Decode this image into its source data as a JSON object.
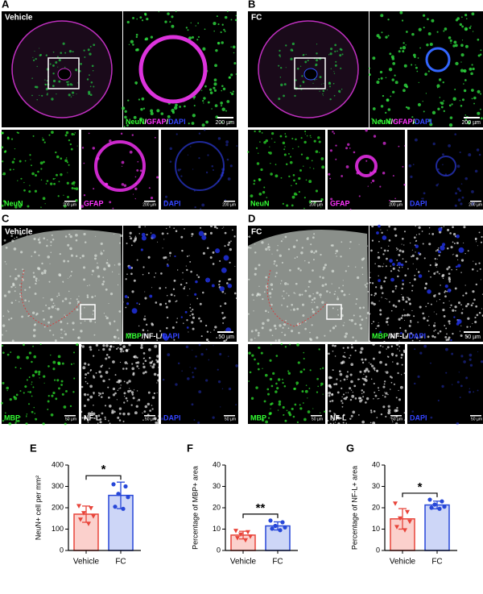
{
  "panels": [
    {
      "letter": "A",
      "condition": "Vehicle",
      "merge": [
        {
          "text": "NeuN",
          "color": "#33ff33"
        },
        {
          "text": "/",
          "color": "#ffffff"
        },
        {
          "text": "GFAP",
          "color": "#ff33ff"
        },
        {
          "text": "/",
          "color": "#ffffff"
        },
        {
          "text": "DAPI",
          "color": "#3344ff"
        }
      ],
      "merge_scale": "200 µm",
      "channels": [
        {
          "name": "NeuN",
          "color": "#33ff33",
          "scale": "200 µm"
        },
        {
          "name": "GFAP",
          "color": "#ff33ff",
          "scale": "200 µm"
        },
        {
          "name": "DAPI",
          "color": "#3344ff",
          "scale": "200 µm"
        }
      ]
    },
    {
      "letter": "B",
      "condition": "FC",
      "merge": [
        {
          "text": "NeuN",
          "color": "#33ff33"
        },
        {
          "text": "/",
          "color": "#ffffff"
        },
        {
          "text": "GFAP",
          "color": "#ff33ff"
        },
        {
          "text": "/",
          "color": "#ffffff"
        },
        {
          "text": "DAPI",
          "color": "#3344ff"
        }
      ],
      "merge_scale": "200 µm",
      "channels": [
        {
          "name": "NeuN",
          "color": "#33ff33",
          "scale": "200 µm"
        },
        {
          "name": "GFAP",
          "color": "#ff33ff",
          "scale": "200 µm"
        },
        {
          "name": "DAPI",
          "color": "#3344ff",
          "scale": "200 µm"
        }
      ]
    },
    {
      "letter": "C",
      "condition": "Vehicle",
      "merge": [
        {
          "text": "MBP",
          "color": "#33ff33"
        },
        {
          "text": "/",
          "color": "#ffffff"
        },
        {
          "text": "NF-L",
          "color": "#ffffff"
        },
        {
          "text": "/",
          "color": "#ffffff"
        },
        {
          "text": "DAPI",
          "color": "#3344ff"
        }
      ],
      "merge_scale": "50 µm",
      "channels": [
        {
          "name": "MBP",
          "color": "#33ff33",
          "scale": "50 µm"
        },
        {
          "name": "NF-L",
          "color": "#ffffff",
          "scale": "50 µm"
        },
        {
          "name": "DAPI",
          "color": "#3344ff",
          "scale": "50 µm"
        }
      ]
    },
    {
      "letter": "D",
      "condition": "FC",
      "merge": [
        {
          "text": "MBP",
          "color": "#33ff33"
        },
        {
          "text": "/",
          "color": "#ffffff"
        },
        {
          "text": "NF-L",
          "color": "#ffffff"
        },
        {
          "text": "/",
          "color": "#ffffff"
        },
        {
          "text": "DAPI",
          "color": "#3344ff"
        }
      ],
      "merge_scale": "50 µm",
      "channels": [
        {
          "name": "MBP",
          "color": "#33ff33",
          "scale": "50 µm"
        },
        {
          "name": "NF-L",
          "color": "#ffffff",
          "scale": "50 µm"
        },
        {
          "name": "DAPI",
          "color": "#3344ff",
          "scale": "50 µm"
        }
      ]
    }
  ],
  "chart_data": [
    {
      "type": "bar",
      "label": "E",
      "ylabel": "NeuN+ cell per mm²",
      "categories": [
        "Vehicle",
        "FC"
      ],
      "values": [
        170,
        258
      ],
      "errors": [
        38,
        62
      ],
      "points": [
        [
          208,
          198,
          175,
          160,
          145,
          125
        ],
        [
          310,
          300,
          265,
          250,
          205,
          195
        ]
      ],
      "colors": [
        "#e8443a",
        "#2747d8"
      ],
      "fills": [
        "#fbd0cc",
        "#cdd6f7"
      ],
      "markers": [
        "triangle",
        "circle"
      ],
      "ylim": [
        0,
        400
      ],
      "yticks": [
        0,
        100,
        200,
        300,
        400
      ],
      "significance": "*"
    },
    {
      "type": "bar",
      "label": "F",
      "ylabel": "Percentage of MBP+ area",
      "categories": [
        "Vehicle",
        "FC"
      ],
      "values": [
        7.2,
        11.5
      ],
      "errors": [
        1.8,
        1.9
      ],
      "points": [
        [
          9.2,
          8.6,
          7.5,
          6.5,
          5.8,
          4.8
        ],
        [
          14,
          13.2,
          11.5,
          10.8,
          10.2,
          9.5
        ]
      ],
      "colors": [
        "#e8443a",
        "#2747d8"
      ],
      "fills": [
        "#fbd0cc",
        "#cdd6f7"
      ],
      "markers": [
        "triangle",
        "circle"
      ],
      "ylim": [
        0,
        40
      ],
      "yticks": [
        0,
        10,
        20,
        30,
        40
      ],
      "significance": "**"
    },
    {
      "type": "bar",
      "label": "G",
      "ylabel": "Percentage of NF-L+ area",
      "categories": [
        "Vehicle",
        "FC"
      ],
      "values": [
        14.8,
        21.3
      ],
      "errors": [
        4.8,
        1.8
      ],
      "points": [
        [
          22,
          18,
          15,
          13.5,
          11,
          9.5
        ],
        [
          23.8,
          23,
          21.5,
          20.5,
          20,
          19.5
        ]
      ],
      "colors": [
        "#e8443a",
        "#2747d8"
      ],
      "fills": [
        "#fbd0cc",
        "#cdd6f7"
      ],
      "markers": [
        "triangle",
        "circle"
      ],
      "ylim": [
        0,
        40
      ],
      "yticks": [
        0,
        10,
        20,
        30,
        40
      ],
      "significance": "*"
    }
  ]
}
